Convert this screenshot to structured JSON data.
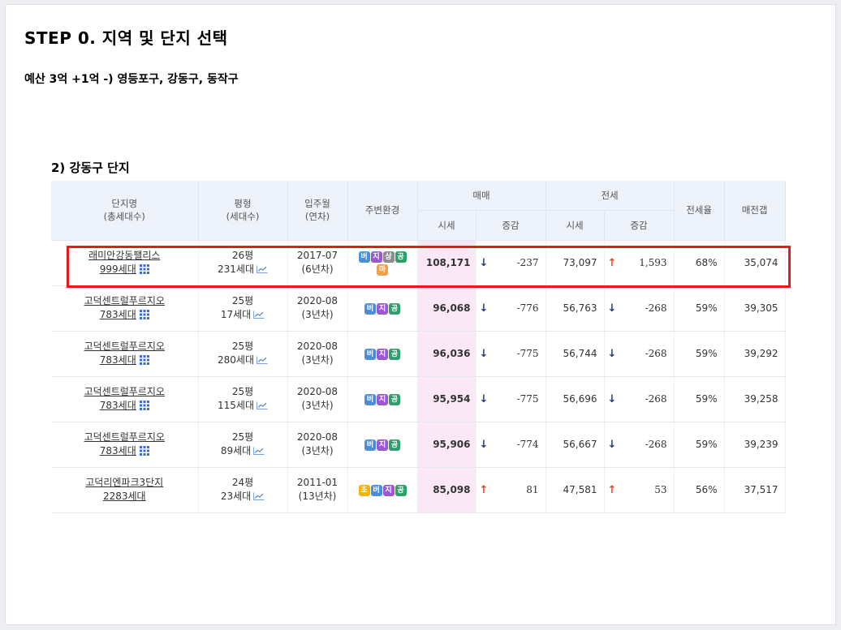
{
  "title": "STEP 0. 지역 및 단지 선택",
  "subtitle": "예산 3억 +1억 -) 영등포구, 강동구, 동작구",
  "section": "2) 강동구 단지",
  "headers": {
    "complex": "단지명",
    "complex_sub": "(총세대수)",
    "area": "평형",
    "area_sub": "(세대수)",
    "movein": "입주월",
    "movein_sub": "(연차)",
    "env": "주변환경",
    "sale": "매매",
    "jeonse": "전세",
    "price": "시세",
    "change": "증감",
    "jeonse_price": "시세",
    "jeonse_change": "증감",
    "ratio": "전세율",
    "gap": "매전갭"
  },
  "rows": [
    {
      "name": "래미안강동팰리스",
      "households": "999세대",
      "area": "26평",
      "area_units": "231세대",
      "movein": "2017-07",
      "age": "(6년차)",
      "badges": [
        "버",
        "지",
        "상",
        "공",
        "마"
      ],
      "sale": "108,171",
      "sale_dir": "↓",
      "sale_change": "-237",
      "jeonse": "73,097",
      "jeonse_dir": "↑",
      "jeonse_change": "1,593",
      "ratio": "68%",
      "gap": "35,074"
    },
    {
      "name": "고덕센트럴푸르지오",
      "households": "783세대",
      "area": "25평",
      "area_units": "17세대",
      "movein": "2020-08",
      "age": "(3년차)",
      "badges": [
        "버",
        "지",
        "공"
      ],
      "sale": "96,068",
      "sale_dir": "↓",
      "sale_change": "-776",
      "jeonse": "56,763",
      "jeonse_dir": "↓",
      "jeonse_change": "-268",
      "ratio": "59%",
      "gap": "39,305"
    },
    {
      "name": "고덕센트럴푸르지오",
      "households": "783세대",
      "area": "25평",
      "area_units": "280세대",
      "movein": "2020-08",
      "age": "(3년차)",
      "badges": [
        "버",
        "지",
        "공"
      ],
      "sale": "96,036",
      "sale_dir": "↓",
      "sale_change": "-775",
      "jeonse": "56,744",
      "jeonse_dir": "↓",
      "jeonse_change": "-268",
      "ratio": "59%",
      "gap": "39,292"
    },
    {
      "name": "고덕센트럴푸르지오",
      "households": "783세대",
      "area": "25평",
      "area_units": "115세대",
      "movein": "2020-08",
      "age": "(3년차)",
      "badges": [
        "버",
        "지",
        "공"
      ],
      "sale": "95,954",
      "sale_dir": "↓",
      "sale_change": "-775",
      "jeonse": "56,696",
      "jeonse_dir": "↓",
      "jeonse_change": "-268",
      "ratio": "59%",
      "gap": "39,258"
    },
    {
      "name": "고덕센트럴푸르지오",
      "households": "783세대",
      "area": "25평",
      "area_units": "89세대",
      "movein": "2020-08",
      "age": "(3년차)",
      "badges": [
        "버",
        "지",
        "공"
      ],
      "sale": "95,906",
      "sale_dir": "↓",
      "sale_change": "-774",
      "jeonse": "56,667",
      "jeonse_dir": "↓",
      "jeonse_change": "-268",
      "ratio": "59%",
      "gap": "39,239"
    },
    {
      "name": "고덕리엔파크3단지",
      "households": "2283세대",
      "area": "24평",
      "area_units": "23세대",
      "movein": "2011-01",
      "age": "(13년차)",
      "badges": [
        "초",
        "버",
        "지",
        "공"
      ],
      "sale": "85,098",
      "sale_dir": "↑",
      "sale_change": "81",
      "jeonse": "47,581",
      "jeonse_dir": "↑",
      "jeonse_change": "53",
      "ratio": "56%",
      "gap": "37,517"
    }
  ],
  "row_grid_icon": [
    true,
    true,
    true,
    true,
    true,
    false
  ],
  "badge_colors": {
    "버": "#4a90d9",
    "지": "#9b59d0",
    "상": "#8d8d8d",
    "공": "#2e9e6b",
    "마": "#f0a04b",
    "초": "#f5b400"
  },
  "colors": {
    "highlight": "#e51b1b",
    "down": "#1f3b7a",
    "up": "#e8431d",
    "price_bg": "#fbe8f7",
    "header_bg": "#eef2fa"
  }
}
